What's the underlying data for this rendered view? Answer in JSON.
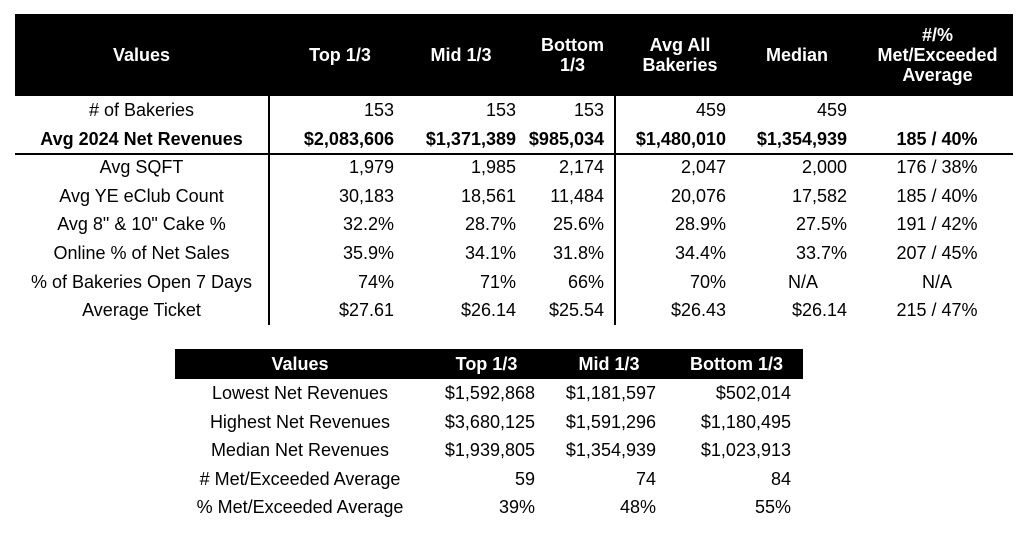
{
  "table1": {
    "headers": {
      "values": "Values",
      "top": "Top 1/3",
      "mid": "Mid 1/3",
      "bottom_l1": "Bottom",
      "bottom_l2": "1/3",
      "avg_l1": "Avg All",
      "avg_l2": "Bakeries",
      "median": "Median",
      "met_l1": "#/%",
      "met_l2": "Met/Exceeded",
      "met_l3": "Average"
    },
    "rows": [
      {
        "label": "# of Bakeries",
        "top": "153",
        "mid": "153",
        "bottom": "153",
        "avg": "459",
        "median": "459",
        "met": ""
      },
      {
        "label": "Avg 2024 Net Revenues",
        "top": "$2,083,606",
        "mid": "$1,371,389",
        "bottom": "$985,034",
        "avg": "$1,480,010",
        "median": "$1,354,939",
        "met": "185 / 40%"
      },
      {
        "label": "Avg SQFT",
        "top": "1,979",
        "mid": "1,985",
        "bottom": "2,174",
        "avg": "2,047",
        "median": "2,000",
        "met": "176 / 38%"
      },
      {
        "label": "Avg YE eClub Count",
        "top": "30,183",
        "mid": "18,561",
        "bottom": "11,484",
        "avg": "20,076",
        "median": "17,582",
        "met": "185 / 40%"
      },
      {
        "label": "Avg 8\" & 10\" Cake %",
        "top": "32.2%",
        "mid": "28.7%",
        "bottom": "25.6%",
        "avg": "28.9%",
        "median": "27.5%",
        "met": "191 / 42%"
      },
      {
        "label": "Online % of Net Sales",
        "top": "35.9%",
        "mid": "34.1%",
        "bottom": "31.8%",
        "avg": "34.4%",
        "median": "33.7%",
        "met": "207 / 45%"
      },
      {
        "label": "% of Bakeries Open 7 Days",
        "top": "74%",
        "mid": "71%",
        "bottom": "66%",
        "avg": "70%",
        "median": "N/A",
        "met": "N/A"
      },
      {
        "label": "Average Ticket",
        "top": "$27.61",
        "mid": "$26.14",
        "bottom": "$25.54",
        "avg": "$26.43",
        "median": "$26.14",
        "met": "215 / 47%"
      }
    ]
  },
  "table2": {
    "headers": {
      "values": "Values",
      "top": "Top 1/3",
      "mid": "Mid 1/3",
      "bottom": "Bottom 1/3"
    },
    "rows": [
      {
        "label": "Lowest Net Revenues",
        "top": "$1,592,868",
        "mid": "$1,181,597",
        "bottom": "$502,014"
      },
      {
        "label": "Highest Net Revenues",
        "top": "$3,680,125",
        "mid": "$1,591,296",
        "bottom": "$1,180,495"
      },
      {
        "label": "Median Net Revenues",
        "top": "$1,939,805",
        "mid": "$1,354,939",
        "bottom": "$1,023,913"
      },
      {
        "label": "# Met/Exceeded Average",
        "top": "59",
        "mid": "74",
        "bottom": "84"
      },
      {
        "label": "% Met/Exceeded Average",
        "top": "39%",
        "mid": "48%",
        "bottom": "55%"
      }
    ]
  }
}
